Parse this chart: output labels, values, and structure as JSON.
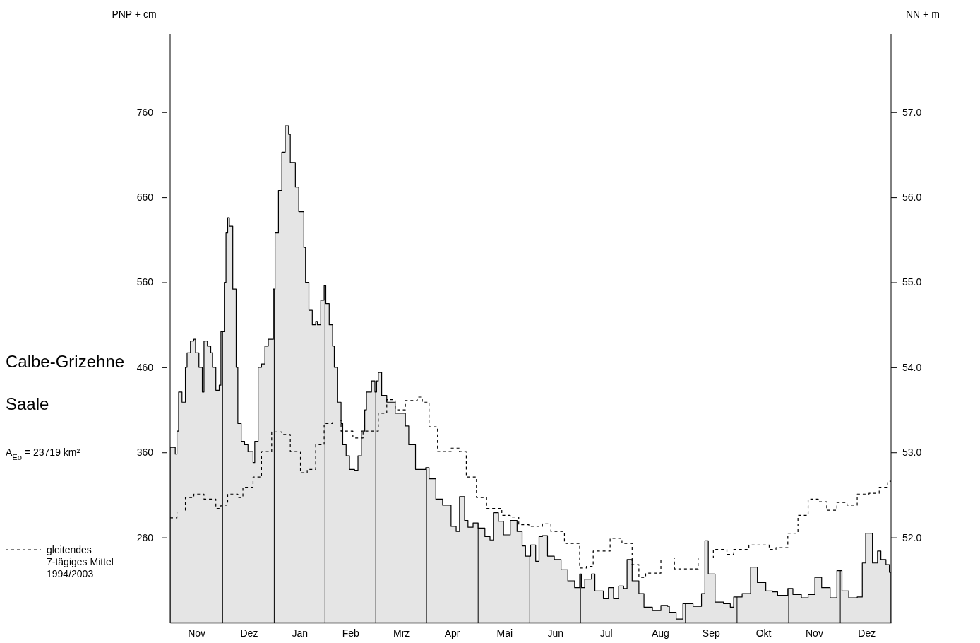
{
  "chart_data": {
    "type": "step",
    "title": "Calbe-Grizehne",
    "subtitle": "Saale",
    "ylabel": "PNP + cm",
    "y2label": "NN + m",
    "annotations": [
      "A$_{Eo}$ = 23719 km²"
    ],
    "categories": [
      null,
      null,
      null,
      null,
      null,
      null,
      null,
      null,
      null,
      null,
      null,
      null,
      null,
      null,
      null,
      "Nov",
      null,
      null,
      null,
      null,
      null,
      null,
      null,
      null,
      null,
      null,
      null,
      null,
      null,
      null,
      null,
      null,
      null,
      null,
      null,
      null,
      null,
      null,
      null,
      null,
      null,
      null,
      null,
      null,
      null,
      null,
      "Dez",
      null,
      null,
      null,
      null,
      null,
      null,
      null,
      null,
      null,
      null,
      null,
      null,
      null,
      null,
      null,
      null,
      null,
      null,
      null,
      null,
      null,
      null,
      null,
      null,
      null,
      null,
      null,
      null,
      null,
      "Jan",
      null,
      null,
      null,
      null,
      null,
      null,
      null,
      null,
      null,
      null,
      null,
      null,
      null,
      null,
      null,
      null,
      null,
      null,
      null,
      null,
      null,
      null,
      null,
      null,
      null,
      null,
      null,
      null,
      null,
      "Feb",
      null,
      null,
      null,
      null,
      null,
      null,
      null,
      null,
      null,
      null,
      null,
      null,
      null,
      null,
      null,
      null,
      null,
      null,
      null,
      null,
      null,
      null,
      null,
      null,
      null,
      null,
      null,
      null,
      null,
      "Mrz",
      null,
      null,
      null,
      null,
      null,
      null,
      null,
      null,
      null,
      null,
      null,
      null,
      null,
      null,
      null,
      null,
      null,
      null,
      null,
      null,
      null,
      null,
      null,
      null,
      null,
      null,
      null,
      null,
      null,
      "Apr",
      null,
      null,
      null,
      null,
      null,
      null,
      null,
      null,
      null,
      null,
      null,
      null,
      null,
      null,
      null,
      null,
      null,
      null,
      null,
      null,
      null,
      null,
      null,
      null,
      null,
      null,
      null,
      null,
      null,
      null,
      "Mai",
      null,
      null,
      null,
      null,
      null,
      null,
      null,
      null,
      null,
      null,
      null,
      null,
      null,
      null,
      null,
      null,
      null,
      null,
      null,
      null,
      null,
      null,
      null,
      null,
      null,
      null,
      null,
      null,
      null,
      "Jun",
      null,
      null,
      null,
      null,
      null,
      null,
      null,
      null,
      null,
      null,
      null,
      null,
      null,
      null,
      null,
      null,
      null,
      null,
      null,
      null,
      null,
      null,
      null,
      null,
      null,
      null,
      null,
      null,
      null,
      "Jul",
      null,
      null,
      null,
      null,
      null,
      null,
      null,
      null,
      null,
      null,
      null,
      null,
      null,
      null,
      null,
      null,
      null,
      null,
      null,
      null,
      null,
      null,
      null,
      null,
      null,
      null,
      null,
      null,
      null,
      null,
      null,
      "Aug",
      null,
      null,
      null,
      null,
      null,
      null,
      null,
      null,
      null,
      null,
      null,
      null,
      null,
      null,
      null,
      null,
      null,
      null,
      null,
      null,
      null,
      null,
      null,
      null,
      null,
      null,
      null,
      null,
      null,
      "Sep",
      null,
      null,
      null,
      null,
      null,
      null,
      null,
      null,
      null,
      null,
      null,
      null,
      null,
      null,
      null,
      null,
      null,
      null,
      null,
      null,
      null,
      null,
      null,
      null,
      null,
      null,
      null,
      null,
      null,
      null,
      "Okt",
      null,
      null,
      null,
      null,
      null,
      null,
      null,
      null,
      null,
      null,
      null,
      null,
      null,
      null,
      null,
      null,
      null,
      null,
      null,
      null,
      null,
      null,
      null,
      null,
      null,
      null,
      null,
      null,
      null,
      "Nov",
      null,
      null,
      null,
      null,
      null,
      null,
      null,
      null,
      null,
      null,
      null,
      null,
      null,
      null,
      null,
      null,
      null,
      null,
      null,
      null,
      null,
      null,
      null,
      null,
      null,
      null,
      null,
      null,
      null,
      null,
      "Dez",
      null,
      null,
      null,
      null,
      null,
      null,
      null,
      null,
      null,
      null,
      null,
      null,
      null,
      null
    ],
    "ylim": [
      160,
      852
    ],
    "yticks": [
      260,
      360,
      460,
      560,
      660,
      760
    ],
    "y2lim": [
      51.0,
      57.92
    ],
    "y2ticks": [
      {
        "value": 52,
        "label": "52.0"
      },
      {
        "value": 53,
        "label": "53.0"
      },
      {
        "value": 54,
        "label": "54.0"
      },
      {
        "value": 55,
        "label": "55.0"
      },
      {
        "value": 56,
        "label": "56.0"
      },
      {
        "value": 57,
        "label": "57.0"
      }
    ],
    "grid": "x",
    "legend": "left",
    "series": [
      {
        "type": "area",
        "color": "#e5e5e5",
        "values": [
          366,
          366,
          366,
          358,
          385,
          431,
          431,
          419,
          419,
          460,
          477,
          477,
          491,
          491,
          493,
          477,
          477,
          460,
          460,
          431,
          491,
          491,
          485,
          485,
          477,
          460,
          460,
          433,
          433,
          439,
          502,
          502,
          560,
          618,
          636,
          626,
          626,
          552,
          552,
          460,
          394,
          394,
          373,
          373,
          369,
          369,
          361,
          361,
          361,
          348,
          373,
          373,
          460,
          460,
          464,
          464,
          485,
          485,
          493,
          493,
          493,
          552,
          618,
          618,
          668,
          668,
          713,
          713,
          744,
          744,
          734,
          701,
          701,
          701,
          672,
          672,
          643,
          643,
          643,
          601,
          560,
          560,
          527,
          527,
          510,
          510,
          514,
          510,
          510,
          539,
          539,
          556,
          535,
          535,
          510,
          510,
          485,
          460,
          460,
          419,
          419,
          394,
          369,
          369,
          356,
          356,
          340,
          340,
          340,
          339,
          339,
          356,
          356,
          385,
          385,
          410,
          431,
          431,
          431,
          444,
          444,
          431,
          444,
          454,
          454,
          427,
          427,
          427,
          419,
          419,
          419,
          419,
          419,
          406,
          406,
          406,
          406,
          406,
          406,
          391,
          391,
          369,
          369,
          369,
          369,
          340,
          340,
          340,
          340,
          340,
          340,
          342,
          342,
          329,
          329,
          329,
          329,
          305,
          305,
          305,
          305,
          298,
          298,
          298,
          298,
          298,
          273,
          273,
          273,
          267,
          267,
          308,
          308,
          308,
          280,
          280,
          272,
          272,
          272,
          277,
          277,
          277,
          271,
          271,
          271,
          271,
          261,
          261,
          261,
          257,
          257,
          289,
          289,
          289,
          279,
          279,
          279,
          263,
          263,
          263,
          263,
          280,
          280,
          280,
          280,
          267,
          267,
          267,
          250,
          250,
          238,
          238,
          238,
          251,
          251,
          251,
          232,
          232,
          261,
          261,
          262,
          262,
          262,
          238,
          238,
          238,
          238,
          234,
          234,
          234,
          234,
          222,
          222,
          222,
          222,
          209,
          209,
          209,
          209,
          201,
          201,
          201,
          217,
          201,
          201,
          211,
          211,
          211,
          211,
          217,
          217,
          197,
          197,
          197,
          197,
          197,
          188,
          188,
          188,
          201,
          201,
          201,
          188,
          188,
          188,
          203,
          203,
          203,
          200,
          200,
          234,
          234,
          234,
          209,
          209,
          209,
          209,
          194,
          194,
          194,
          178,
          178,
          178,
          178,
          178,
          174,
          174,
          174,
          174,
          174,
          180,
          180,
          180,
          180,
          179,
          172,
          172,
          172,
          172,
          164,
          164,
          164,
          164,
          182,
          182,
          182,
          182,
          182,
          182,
          179,
          179,
          179,
          179,
          179,
          194,
          194,
          256,
          256,
          217,
          217,
          217,
          217,
          184,
          184,
          184,
          184,
          184,
          182,
          182,
          182,
          182,
          178,
          178,
          190,
          190,
          190,
          190,
          190,
          194,
          194,
          194,
          194,
          194,
          225,
          225,
          225,
          225,
          207,
          207,
          207,
          207,
          207,
          197,
          197,
          197,
          197,
          196,
          196,
          196,
          192,
          192,
          192,
          192,
          192,
          192,
          200,
          200,
          200,
          193,
          193,
          193,
          193,
          193,
          189,
          189,
          189,
          189,
          193,
          193,
          193,
          193,
          213,
          213,
          213,
          213,
          201,
          201,
          201,
          201,
          201,
          189,
          189,
          189,
          189,
          221,
          221,
          221,
          197,
          197,
          197,
          197,
          189,
          189,
          189,
          189,
          189,
          190,
          190,
          190,
          230,
          230,
          265,
          265,
          265,
          265,
          230,
          230,
          230,
          244,
          244,
          234,
          234,
          234,
          228,
          228,
          219
        ]
      },
      {
        "type": "step",
        "name": "gleitendes 7-tägiges Mittel 1994/2003",
        "color": "#000000",
        "line_style": "dashed",
        "values": [
          283,
          283,
          283,
          283,
          290,
          290,
          290,
          290,
          290,
          307,
          307,
          307,
          307,
          307,
          311,
          311,
          311,
          311,
          311,
          311,
          305,
          305,
          305,
          305,
          305,
          305,
          305,
          294,
          294,
          294,
          298,
          298,
          298,
          298,
          311,
          311,
          311,
          311,
          311,
          311,
          307,
          307,
          307,
          319,
          319,
          319,
          319,
          319,
          319,
          331,
          331,
          331,
          331,
          331,
          361,
          361,
          361,
          361,
          361,
          361,
          384,
          384,
          384,
          384,
          384,
          384,
          381,
          381,
          381,
          381,
          381,
          361,
          361,
          361,
          361,
          361,
          361,
          336,
          336,
          336,
          336,
          340,
          340,
          340,
          340,
          340,
          369,
          369,
          369,
          369,
          369,
          394,
          394,
          394,
          394,
          394,
          398,
          398,
          398,
          398,
          398,
          385,
          385,
          385,
          385,
          385,
          385,
          385,
          377,
          377,
          377,
          377,
          377,
          377,
          385,
          385,
          385,
          385,
          385,
          385,
          385,
          385,
          385,
          406,
          406,
          406,
          406,
          406,
          422,
          422,
          422,
          422,
          422,
          410,
          410,
          410,
          410,
          410,
          410,
          421,
          421,
          421,
          421,
          421,
          421,
          421,
          425,
          425,
          425,
          419,
          419,
          419,
          419,
          390,
          390,
          390,
          390,
          390,
          361,
          361,
          361,
          361,
          361,
          361,
          361,
          361,
          365,
          365,
          365,
          365,
          365,
          361,
          361,
          361,
          361,
          331,
          331,
          331,
          331,
          331,
          331,
          307,
          307,
          307,
          307,
          307,
          307,
          294,
          294,
          294,
          294,
          294,
          294,
          294,
          294,
          294,
          286,
          286,
          286,
          286,
          286,
          284,
          284,
          284,
          284,
          284,
          275,
          275,
          275,
          275,
          275,
          275,
          273,
          273,
          273,
          273,
          273,
          273,
          273,
          273,
          276,
          276,
          276,
          276,
          276,
          267,
          267,
          267,
          267,
          267,
          267,
          267,
          267,
          253,
          253,
          253,
          253,
          253,
          253,
          253,
          253,
          253,
          224,
          224,
          224,
          224,
          226,
          226,
          226,
          226,
          244,
          244,
          244,
          244,
          244,
          244,
          244,
          244,
          244,
          244,
          259,
          259,
          259,
          259,
          259,
          259,
          259,
          253,
          253,
          253,
          253,
          253,
          253,
          228,
          228,
          228,
          228,
          213,
          213,
          213,
          213,
          218,
          218,
          218,
          218,
          218,
          218,
          218,
          218,
          218,
          236,
          236,
          236,
          236,
          236,
          236,
          236,
          236,
          223,
          223,
          223,
          223,
          223,
          223,
          223,
          223,
          223,
          223,
          223,
          223,
          223,
          223,
          236,
          236,
          236,
          236,
          236,
          236,
          236,
          236,
          236,
          246,
          246,
          246,
          246,
          246,
          246,
          246,
          246,
          240,
          240,
          240,
          240,
          246,
          246,
          246,
          246,
          246,
          246,
          246,
          246,
          246,
          251,
          251,
          251,
          251,
          251,
          251,
          251,
          251,
          251,
          251,
          251,
          251,
          246,
          246,
          246,
          246,
          248,
          248,
          248,
          248,
          248,
          248,
          248,
          265,
          265,
          265,
          265,
          265,
          265,
          286,
          286,
          286,
          286,
          286,
          286,
          305,
          305,
          305,
          305,
          305,
          305,
          302,
          302,
          302,
          302,
          302,
          292,
          292,
          292,
          292,
          292,
          292,
          301,
          301,
          301,
          301,
          301,
          301,
          298,
          298,
          298,
          298,
          298,
          298,
          311,
          311,
          311,
          311,
          311,
          311,
          311,
          312,
          312,
          312,
          312,
          312,
          312,
          319,
          319,
          319,
          319,
          319,
          326,
          326
        ]
      }
    ]
  }
}
